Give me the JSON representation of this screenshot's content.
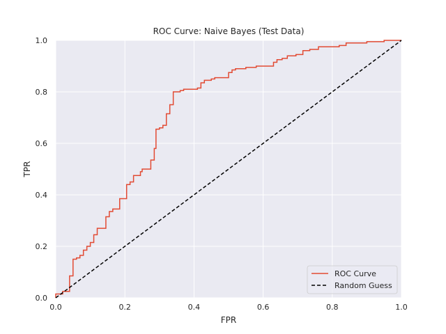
{
  "chart_data": {
    "type": "line",
    "title": "ROC Curve: Naive Bayes (Test Data)",
    "xlabel": "FPR",
    "ylabel": "TPR",
    "xlim": [
      0.0,
      1.0
    ],
    "ylim": [
      0.0,
      1.0
    ],
    "grid": true,
    "legend_position": "bottom-right",
    "x_ticks": [
      "0.0",
      "0.2",
      "0.4",
      "0.6",
      "0.8",
      "1.0"
    ],
    "y_ticks": [
      "0.0",
      "0.2",
      "0.4",
      "0.6",
      "0.8",
      "1.0"
    ],
    "series": [
      {
        "name": "ROC Curve",
        "color": "#e24a33",
        "style": "solid",
        "step": true,
        "points": [
          [
            0.0,
            0.0
          ],
          [
            0.0,
            0.015
          ],
          [
            0.02,
            0.015
          ],
          [
            0.02,
            0.025
          ],
          [
            0.04,
            0.025
          ],
          [
            0.04,
            0.085
          ],
          [
            0.05,
            0.085
          ],
          [
            0.05,
            0.15
          ],
          [
            0.06,
            0.15
          ],
          [
            0.06,
            0.155
          ],
          [
            0.07,
            0.155
          ],
          [
            0.07,
            0.165
          ],
          [
            0.08,
            0.165
          ],
          [
            0.08,
            0.185
          ],
          [
            0.09,
            0.185
          ],
          [
            0.09,
            0.2
          ],
          [
            0.1,
            0.2
          ],
          [
            0.1,
            0.215
          ],
          [
            0.11,
            0.215
          ],
          [
            0.11,
            0.245
          ],
          [
            0.12,
            0.245
          ],
          [
            0.12,
            0.27
          ],
          [
            0.145,
            0.27
          ],
          [
            0.145,
            0.315
          ],
          [
            0.155,
            0.315
          ],
          [
            0.155,
            0.335
          ],
          [
            0.165,
            0.335
          ],
          [
            0.165,
            0.345
          ],
          [
            0.185,
            0.345
          ],
          [
            0.185,
            0.385
          ],
          [
            0.205,
            0.385
          ],
          [
            0.205,
            0.44
          ],
          [
            0.215,
            0.44
          ],
          [
            0.215,
            0.45
          ],
          [
            0.225,
            0.45
          ],
          [
            0.225,
            0.475
          ],
          [
            0.245,
            0.475
          ],
          [
            0.245,
            0.49
          ],
          [
            0.25,
            0.49
          ],
          [
            0.25,
            0.5
          ],
          [
            0.275,
            0.5
          ],
          [
            0.275,
            0.535
          ],
          [
            0.285,
            0.535
          ],
          [
            0.285,
            0.58
          ],
          [
            0.29,
            0.58
          ],
          [
            0.29,
            0.655
          ],
          [
            0.3,
            0.655
          ],
          [
            0.3,
            0.66
          ],
          [
            0.31,
            0.66
          ],
          [
            0.31,
            0.67
          ],
          [
            0.32,
            0.67
          ],
          [
            0.32,
            0.715
          ],
          [
            0.33,
            0.715
          ],
          [
            0.33,
            0.75
          ],
          [
            0.34,
            0.75
          ],
          [
            0.34,
            0.8
          ],
          [
            0.36,
            0.8
          ],
          [
            0.36,
            0.805
          ],
          [
            0.37,
            0.805
          ],
          [
            0.37,
            0.81
          ],
          [
            0.41,
            0.81
          ],
          [
            0.41,
            0.815
          ],
          [
            0.42,
            0.815
          ],
          [
            0.42,
            0.835
          ],
          [
            0.43,
            0.835
          ],
          [
            0.43,
            0.845
          ],
          [
            0.45,
            0.845
          ],
          [
            0.45,
            0.85
          ],
          [
            0.46,
            0.85
          ],
          [
            0.46,
            0.855
          ],
          [
            0.5,
            0.855
          ],
          [
            0.5,
            0.875
          ],
          [
            0.51,
            0.875
          ],
          [
            0.51,
            0.885
          ],
          [
            0.52,
            0.885
          ],
          [
            0.52,
            0.89
          ],
          [
            0.55,
            0.89
          ],
          [
            0.55,
            0.895
          ],
          [
            0.58,
            0.895
          ],
          [
            0.58,
            0.9
          ],
          [
            0.63,
            0.9
          ],
          [
            0.63,
            0.915
          ],
          [
            0.64,
            0.915
          ],
          [
            0.64,
            0.925
          ],
          [
            0.655,
            0.925
          ],
          [
            0.655,
            0.93
          ],
          [
            0.67,
            0.93
          ],
          [
            0.67,
            0.94
          ],
          [
            0.695,
            0.94
          ],
          [
            0.695,
            0.945
          ],
          [
            0.715,
            0.945
          ],
          [
            0.715,
            0.96
          ],
          [
            0.735,
            0.96
          ],
          [
            0.735,
            0.965
          ],
          [
            0.76,
            0.965
          ],
          [
            0.76,
            0.975
          ],
          [
            0.82,
            0.975
          ],
          [
            0.82,
            0.98
          ],
          [
            0.84,
            0.98
          ],
          [
            0.84,
            0.99
          ],
          [
            0.9,
            0.99
          ],
          [
            0.9,
            0.995
          ],
          [
            0.95,
            0.995
          ],
          [
            0.95,
            1.0
          ],
          [
            1.0,
            1.0
          ]
        ]
      },
      {
        "name": "Random Guess",
        "color": "#000000",
        "style": "dashed",
        "step": false,
        "points": [
          [
            0.0,
            0.0
          ],
          [
            1.0,
            1.0
          ]
        ]
      }
    ]
  },
  "colors": {
    "plot_background": "#eaeaf2",
    "grid": "#ffffff",
    "text": "#262626"
  }
}
